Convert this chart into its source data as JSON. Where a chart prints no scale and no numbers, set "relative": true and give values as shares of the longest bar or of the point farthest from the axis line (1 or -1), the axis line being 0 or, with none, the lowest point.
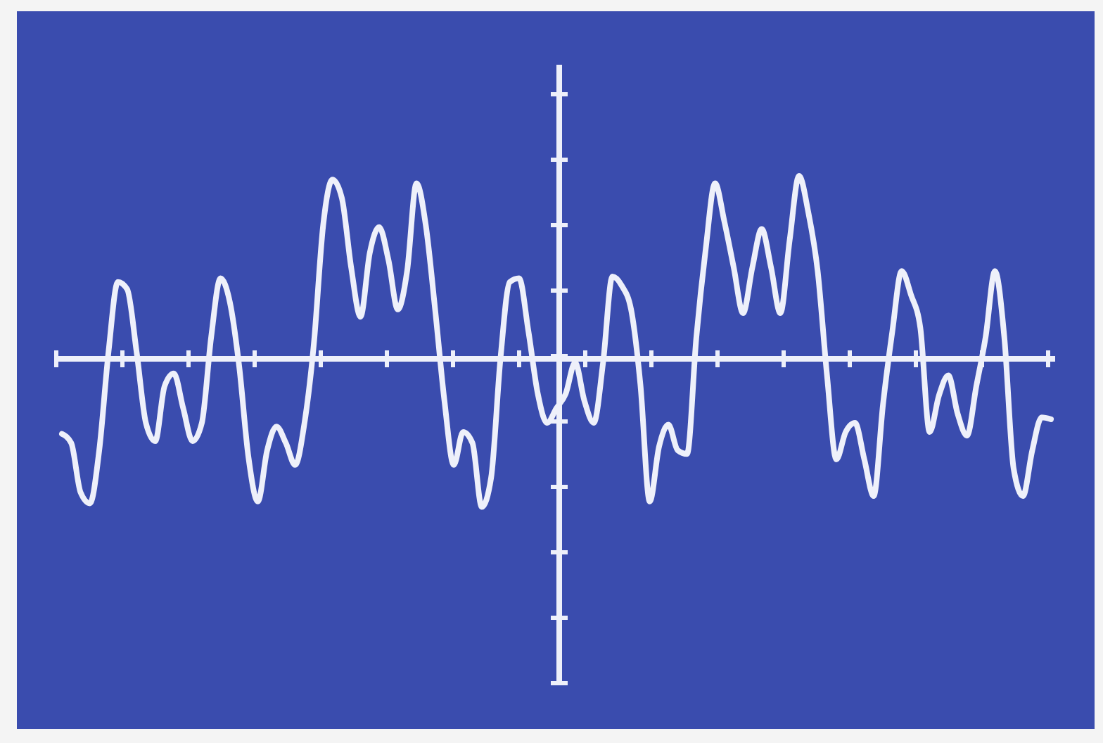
{
  "chart_data": {
    "type": "line",
    "relative": true,
    "categories": [
      null,
      null,
      null,
      null,
      null,
      null,
      null,
      null,
      null,
      null,
      null,
      null,
      null,
      null,
      null,
      null,
      null,
      null,
      null,
      null,
      null,
      null,
      null,
      null,
      null,
      null,
      null,
      null,
      null,
      null,
      null,
      null,
      null,
      null,
      null,
      null,
      null,
      null,
      null,
      null,
      null,
      null,
      null,
      null,
      null,
      null,
      null,
      null,
      null,
      null,
      null,
      null,
      null,
      null,
      null,
      null,
      null,
      null,
      null,
      null,
      null,
      null,
      null,
      null,
      null,
      null,
      null,
      null,
      null,
      null,
      null,
      null,
      null,
      null,
      null,
      null,
      null,
      null,
      null,
      null,
      null,
      null,
      null,
      null,
      null,
      null,
      null,
      null,
      null,
      null,
      null,
      null,
      null,
      null,
      null,
      null,
      null,
      null,
      null,
      null,
      null,
      null,
      null,
      null,
      null,
      null,
      null
    ],
    "series": [
      {
        "color": "#eef0fa",
        "values": [
          -0.41,
          -0.46,
          -0.73,
          -0.79,
          -0.5,
          0.04,
          0.42,
          0.38,
          0.04,
          -0.35,
          -0.45,
          -0.15,
          -0.08,
          -0.27,
          -0.45,
          -0.35,
          0.12,
          0.44,
          0.31,
          -0.04,
          -0.54,
          -0.78,
          -0.5,
          -0.37,
          -0.46,
          -0.58,
          -0.35,
          0.08,
          0.73,
          0.98,
          0.88,
          0.5,
          0.23,
          0.58,
          0.72,
          0.54,
          0.27,
          0.48,
          0.96,
          0.73,
          0.27,
          -0.23,
          -0.58,
          -0.4,
          -0.46,
          -0.81,
          -0.65,
          0,
          0.42,
          0.44,
          0.15,
          -0.19,
          -0.35,
          -0.27,
          -0.19,
          -0.02,
          -0.23,
          -0.35,
          -0.02,
          0.45,
          0.4,
          0.27,
          -0.14,
          -0.78,
          -0.48,
          -0.36,
          -0.5,
          -0.52,
          0.12,
          0.6,
          0.96,
          0.75,
          0.5,
          0.25,
          0.5,
          0.71,
          0.5,
          0.25,
          0.65,
          1,
          0.8,
          0.48,
          -0.09,
          -0.55,
          -0.4,
          -0.35,
          -0.55,
          -0.75,
          -0.25,
          0.15,
          0.48,
          0.35,
          0.17,
          -0.4,
          -0.2,
          -0.09,
          -0.3,
          -0.42,
          -0.15,
          0.12,
          0.48,
          0.12,
          -0.6,
          -0.75,
          -0.5,
          -0.32,
          -0.33
        ]
      }
    ]
  }
}
